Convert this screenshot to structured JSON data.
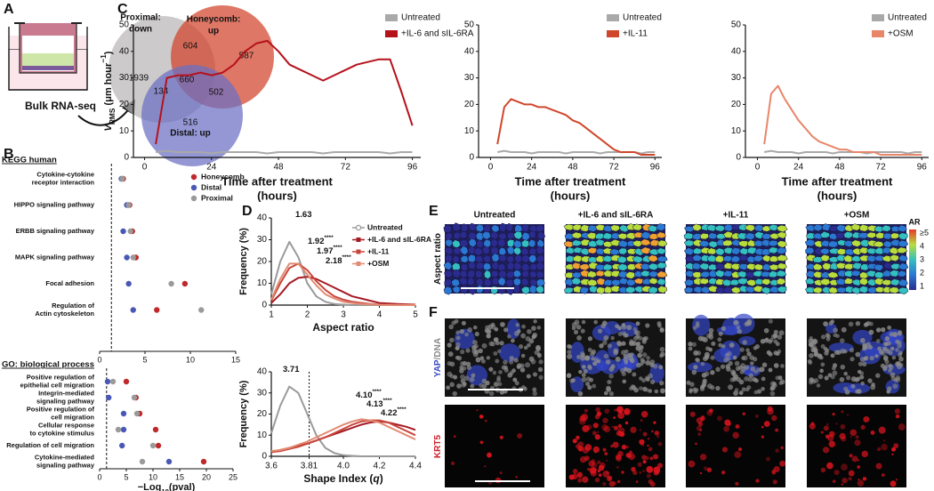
{
  "panel_labels": [
    "A",
    "B",
    "C",
    "D",
    "E",
    "F"
  ],
  "venn": {
    "sets": [
      {
        "label": [
          "Proximal:",
          "down"
        ],
        "color": "#b9b6b6"
      },
      {
        "label": [
          "Honeycomb:",
          "up"
        ],
        "color": "#d2432b"
      },
      {
        "label": [
          "Distal: up"
        ],
        "color": "#6b6fc4"
      }
    ],
    "counts": [
      "1939",
      "604",
      "587",
      "660",
      "134",
      "502",
      "516"
    ],
    "caption": "Bulk RNA-seq"
  },
  "chart_data": [
    {
      "type": "dot",
      "section": "KEGG human",
      "categories": [
        [
          "Cytokine-cytokine",
          "receptor interaction"
        ],
        [
          "HIPPO signaling pathway"
        ],
        [
          "ERBB signaling pathway"
        ],
        [
          "MAPK signaling pathway"
        ],
        [
          "Focal adhesion"
        ],
        [
          "Regulation of",
          "Actin cytoskeleton"
        ]
      ],
      "series": [
        {
          "name": "Honeycomb",
          "color": "#c0282a",
          "values": [
            2.6,
            3.3,
            3.6,
            4.0,
            9.4,
            6.3
          ]
        },
        {
          "name": "Distal",
          "color": "#4a58b5",
          "values": [
            2.4,
            3.0,
            2.6,
            3.0,
            3.2,
            3.7
          ]
        },
        {
          "name": "Proximal",
          "color": "#9a9a9a",
          "values": [
            2.5,
            3.2,
            3.4,
            3.7,
            7.9,
            11.2
          ]
        }
      ],
      "xlim": [
        0,
        15
      ],
      "xticks": [
        0,
        5,
        10,
        15
      ],
      "threshold": 1.3,
      "legend": "top-right"
    },
    {
      "type": "dot",
      "section": "GO: biological process",
      "categories": [
        [
          "Positive regulation of",
          "epithelial cell migration"
        ],
        [
          "Integrin-mediated",
          "signaling pathway"
        ],
        [
          "Positive regulation of",
          "cell migration"
        ],
        [
          "Cellular response",
          "to cytokine stimulus"
        ],
        [
          "Regulation of cell migration"
        ],
        [
          "Cytokine-mediated",
          "signaling pathway"
        ]
      ],
      "series": [
        {
          "name": "Honeycomb",
          "color": "#c0282a",
          "values": [
            5.0,
            6.8,
            7.5,
            10.5,
            11.0,
            19.5
          ]
        },
        {
          "name": "Distal",
          "color": "#4a58b5",
          "values": [
            1.5,
            1.7,
            4.5,
            4.5,
            4.2,
            13.0
          ]
        },
        {
          "name": "Proximal",
          "color": "#9a9a9a",
          "values": [
            2.5,
            6.5,
            7.0,
            3.5,
            10.0,
            8.0
          ]
        }
      ],
      "xlim": [
        0,
        25
      ],
      "xticks": [
        0,
        5,
        10,
        15,
        20,
        25
      ],
      "threshold": 1.3,
      "x_label": [
        {
          "text": "−Log"
        },
        {
          "text": "10",
          "style": "sub"
        },
        {
          "text": "(pval)"
        }
      ]
    },
    {
      "type": "line",
      "x": [
        4,
        8,
        12,
        16,
        20,
        24,
        28,
        32,
        36,
        40,
        44,
        48,
        52,
        56,
        60,
        64,
        68,
        72,
        76,
        80,
        84,
        88,
        92,
        96
      ],
      "series": [
        {
          "name": "Untreated",
          "color": "#a9a9a9",
          "values": [
            2,
            2.5,
            2,
            2,
            2,
            1.5,
            2,
            2,
            2,
            2,
            1.5,
            2,
            2,
            2,
            2,
            1.5,
            2,
            2,
            2,
            2,
            2,
            1.5,
            2,
            2
          ]
        },
        {
          "name": "+IL-6 and sIL-6RA",
          "color": "#b5121b",
          "values": [
            5,
            30,
            31,
            31,
            32,
            31,
            32,
            35,
            40,
            43,
            44,
            40,
            35,
            33,
            31,
            29,
            31,
            33,
            35,
            36,
            37,
            37,
            25,
            12
          ]
        }
      ],
      "xlim": [
        -4,
        99
      ],
      "xticks": [
        0,
        24,
        48,
        72,
        96
      ],
      "ylim": [
        0,
        50
      ],
      "yticks": [
        0,
        10,
        20,
        30,
        40,
        50
      ],
      "y_label": [
        {
          "text": "V",
          "style": "italic"
        },
        {
          "text": "RMS",
          "style": "sub"
        },
        {
          "text": " (μm hour"
        },
        {
          "text": "−1",
          "style": "super"
        },
        {
          "text": ")"
        }
      ],
      "x_label": [
        "Time after treatment",
        "(hours)"
      ],
      "legend": "top-right"
    },
    {
      "type": "line",
      "x": [
        4,
        8,
        12,
        16,
        20,
        24,
        28,
        32,
        36,
        40,
        44,
        48,
        52,
        56,
        60,
        64,
        68,
        72,
        76,
        80,
        84,
        88,
        92,
        96
      ],
      "series": [
        {
          "name": "Untreated",
          "color": "#a9a9a9",
          "values": [
            2,
            2.5,
            2,
            2,
            2,
            1.5,
            2,
            2,
            2,
            2,
            1.5,
            2,
            2,
            2,
            2,
            1.5,
            2,
            2,
            2,
            2,
            2,
            1.5,
            2,
            2
          ]
        },
        {
          "name": "+IL-11",
          "color": "#d0462c",
          "values": [
            5,
            19,
            22,
            21,
            20,
            20,
            19,
            19,
            18,
            17,
            16,
            14,
            13,
            11,
            9,
            7,
            5,
            3,
            2,
            2,
            2,
            1,
            1,
            1
          ]
        }
      ],
      "xlim": [
        -7,
        100
      ],
      "xticks": [
        0,
        24,
        48,
        72,
        96
      ],
      "ylim": [
        0,
        50
      ],
      "yticks": [
        0,
        10,
        20,
        30,
        40,
        50
      ],
      "x_label": [
        "Time after treatment",
        "(hours)"
      ],
      "legend": "top-right"
    },
    {
      "type": "line",
      "x": [
        4,
        8,
        12,
        16,
        20,
        24,
        28,
        32,
        36,
        40,
        44,
        48,
        52,
        56,
        60,
        64,
        68,
        72,
        76,
        80,
        84,
        88,
        92,
        96
      ],
      "series": [
        {
          "name": "Untreated",
          "color": "#a9a9a9",
          "values": [
            2,
            2.5,
            2,
            2,
            2,
            1.5,
            2,
            2,
            2,
            2,
            1.5,
            2,
            2,
            2,
            2,
            1.5,
            2,
            2,
            2,
            2,
            2,
            1.5,
            2,
            2
          ]
        },
        {
          "name": "+OSM",
          "color": "#e8866a",
          "values": [
            5,
            24,
            27,
            22,
            18,
            14,
            11,
            8,
            6,
            5,
            4,
            3,
            3,
            2,
            2,
            2,
            2,
            1,
            1,
            1,
            1,
            1,
            1,
            1
          ]
        }
      ],
      "xlim": [
        -7,
        100
      ],
      "xticks": [
        0,
        24,
        48,
        72,
        96
      ],
      "ylim": [
        0,
        50
      ],
      "yticks": [
        0,
        10,
        20,
        30,
        40,
        50
      ],
      "x_label": [
        "Time after treatment",
        "(hours)"
      ],
      "legend": "top-right"
    },
    {
      "type": "line",
      "x": [
        1,
        1.25,
        1.5,
        1.75,
        2,
        2.25,
        2.5,
        2.75,
        3,
        3.25,
        3.5,
        3.75,
        4,
        4.5,
        5
      ],
      "series": [
        {
          "name": "Untreated",
          "color": "#9a9a9a",
          "marker": "circle",
          "values": [
            5,
            20,
            29,
            22,
            10,
            4,
            1.5,
            0.5,
            0.2,
            0,
            0,
            0,
            0,
            0,
            0
          ]
        },
        {
          "name": "+IL-6 and sIL-6RA",
          "color": "#a51c24",
          "marker": "square",
          "values": [
            1,
            5,
            10,
            12.5,
            13,
            12,
            10,
            8,
            6,
            4,
            3,
            2,
            1,
            0.5,
            0.2
          ]
        },
        {
          "name": "+IL-11",
          "color": "#c9453b",
          "marker": "square",
          "values": [
            2,
            10,
            17,
            19,
            16,
            11,
            7,
            4,
            2.5,
            1.5,
            1,
            0.5,
            0.2,
            0.1,
            0
          ]
        },
        {
          "name": "+OSM",
          "color": "#e28a72",
          "marker": "square",
          "values": [
            2.5,
            12,
            19,
            19,
            14,
            9,
            5,
            3,
            1.5,
            1,
            0.5,
            0.3,
            0.1,
            0,
            0
          ]
        }
      ],
      "xlim": [
        1,
        5
      ],
      "xticks": [
        1,
        2,
        3,
        4,
        5
      ],
      "ylim": [
        0,
        40
      ],
      "yticks": [
        0,
        10,
        20,
        30,
        40
      ],
      "y_label": "Frequency (%)",
      "x_label": [
        {
          "text": "Aspect ratio"
        }
      ],
      "legend": "top-right",
      "annotations": [
        {
          "text": "1.63",
          "color": "#9a9a9a"
        },
        {
          "text": "1.92",
          "stars": "****",
          "color": "#e28a72"
        },
        {
          "text": "1.97",
          "stars": "****",
          "color": "#c9453b"
        },
        {
          "text": "2.18",
          "stars": "****",
          "color": "#a51c24"
        }
      ]
    },
    {
      "type": "line",
      "x": [
        3.6,
        3.65,
        3.7,
        3.75,
        3.8,
        3.85,
        3.9,
        3.95,
        4.0,
        4.05,
        4.1,
        4.15,
        4.2,
        4.25,
        4.3,
        4.35,
        4.4
      ],
      "series": [
        {
          "name": "Untreated",
          "color": "#9a9a9a",
          "values": [
            11,
            24,
            33,
            30,
            20,
            10,
            4,
            1.5,
            0.5,
            0.2,
            0,
            0,
            0,
            0,
            0,
            0,
            0
          ]
        },
        {
          "name": "+IL-6 and sIL-6RA",
          "color": "#a51c24",
          "values": [
            2,
            3,
            4,
            5,
            6,
            7.5,
            9,
            10.5,
            12,
            13.5,
            15,
            16,
            16.5,
            16,
            15,
            14,
            12.5
          ]
        },
        {
          "name": "+IL-11",
          "color": "#c9453b",
          "values": [
            2,
            2.5,
            3.5,
            4.5,
            6,
            7.5,
            9,
            11,
            13,
            15,
            16.5,
            17,
            17,
            16,
            14,
            12,
            10
          ]
        },
        {
          "name": "+OSM",
          "color": "#e28a72",
          "values": [
            2.5,
            3,
            4,
            5.5,
            7,
            9,
            11,
            13,
            15,
            16.5,
            17.5,
            17,
            16,
            14,
            12,
            10,
            8
          ]
        }
      ],
      "xlim": [
        3.6,
        4.4
      ],
      "xticks": [
        3.6,
        3.81,
        {
          "value": 4,
          "label": "4.0"
        },
        4.2,
        4.4
      ],
      "ylim": [
        0,
        40
      ],
      "yticks": [
        0,
        10,
        20,
        30,
        40
      ],
      "vline": 3.81,
      "y_label": "Frequency (%)",
      "x_label": [
        {
          "text": "Shape Index ("
        },
        {
          "text": "q",
          "style": "italic"
        },
        {
          "text": ")"
        }
      ],
      "annotations": [
        {
          "text": "3.71",
          "color": "#9a9a9a"
        },
        {
          "text": "4.10",
          "stars": "****",
          "color": "#e28a72"
        },
        {
          "text": "4.13",
          "stars": "****",
          "color": "#c9453b"
        },
        {
          "text": "4.22",
          "stars": "****",
          "color": "#a51c24"
        }
      ]
    }
  ],
  "images": {
    "columns": [
      {
        "title": "Untreated",
        "color": "#9a9a9a"
      },
      {
        "title": "+IL-6 and sIL-6RA",
        "color": "#c0282a"
      },
      {
        "title": "+IL-11",
        "color": "#d0462c"
      },
      {
        "title": "+OSM",
        "color": "#e8866a"
      }
    ],
    "row_labels": [
      [
        {
          "text": "Aspect ratio",
          "color": "#111111"
        }
      ],
      [
        {
          "text": "YAP",
          "color": "#3a4bc0"
        },
        {
          "text": "/DNA",
          "color": "#8a8a8a"
        }
      ],
      [
        {
          "text": "KRT5",
          "color": "#d0202a"
        }
      ]
    ],
    "colorbar": {
      "title": "AR",
      "labels": [
        "≥5",
        "4",
        "3",
        "2",
        "1"
      ]
    }
  }
}
